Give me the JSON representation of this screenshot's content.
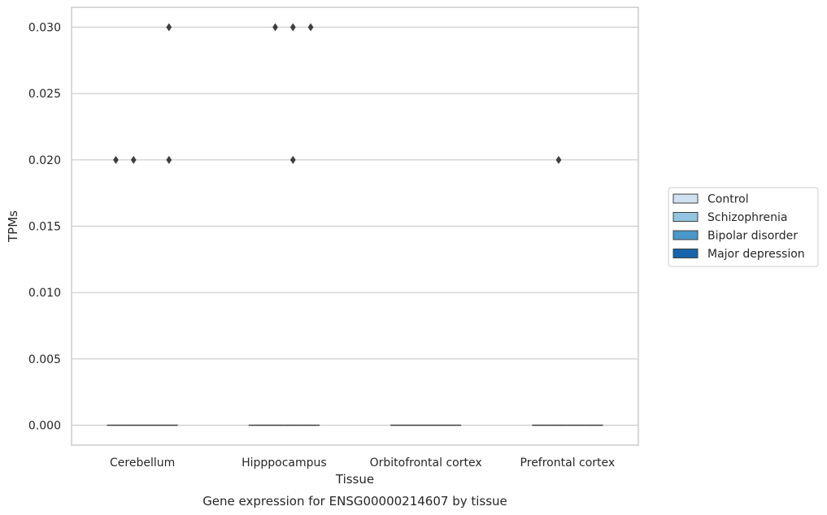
{
  "chart_data": {
    "type": "box",
    "title": "",
    "caption": "Gene expression for ENSG00000214607 by tissue",
    "xlabel": "Tissue",
    "ylabel": "TPMs",
    "ylim": [
      -0.0015,
      0.0315
    ],
    "yticks": [
      0.0,
      0.005,
      0.01,
      0.015,
      0.02,
      0.025,
      0.03
    ],
    "ytick_labels": [
      "0.000",
      "0.005",
      "0.010",
      "0.015",
      "0.020",
      "0.025",
      "0.030"
    ],
    "grid": "horizontal",
    "legend_position": "center-right",
    "categories": [
      "Cerebellum",
      "Hipppocampus",
      "Orbitofrontal cortex",
      "Prefrontal cortex"
    ],
    "series": [
      {
        "name": "Control",
        "color": "#d0e1f2",
        "median": [
          0,
          0,
          0,
          0
        ],
        "outliers": [
          [
            0.02
          ],
          [],
          [],
          []
        ]
      },
      {
        "name": "Schizophrenia",
        "color": "#94c4df",
        "median": [
          0,
          0,
          0,
          0
        ],
        "outliers": [
          [
            0.02
          ],
          [
            0.03
          ],
          [],
          [
            0.02
          ]
        ]
      },
      {
        "name": "Bipolar disorder",
        "color": "#4a98c9",
        "median": [
          0,
          0,
          0,
          0
        ],
        "outliers": [
          [],
          [
            0.03,
            0.02
          ],
          [],
          []
        ]
      },
      {
        "name": "Major depression",
        "color": "#1764ab",
        "median": [
          0,
          0,
          0,
          0
        ],
        "outliers": [
          [
            0.03,
            0.02
          ],
          [
            0.03
          ],
          [],
          []
        ]
      }
    ]
  }
}
